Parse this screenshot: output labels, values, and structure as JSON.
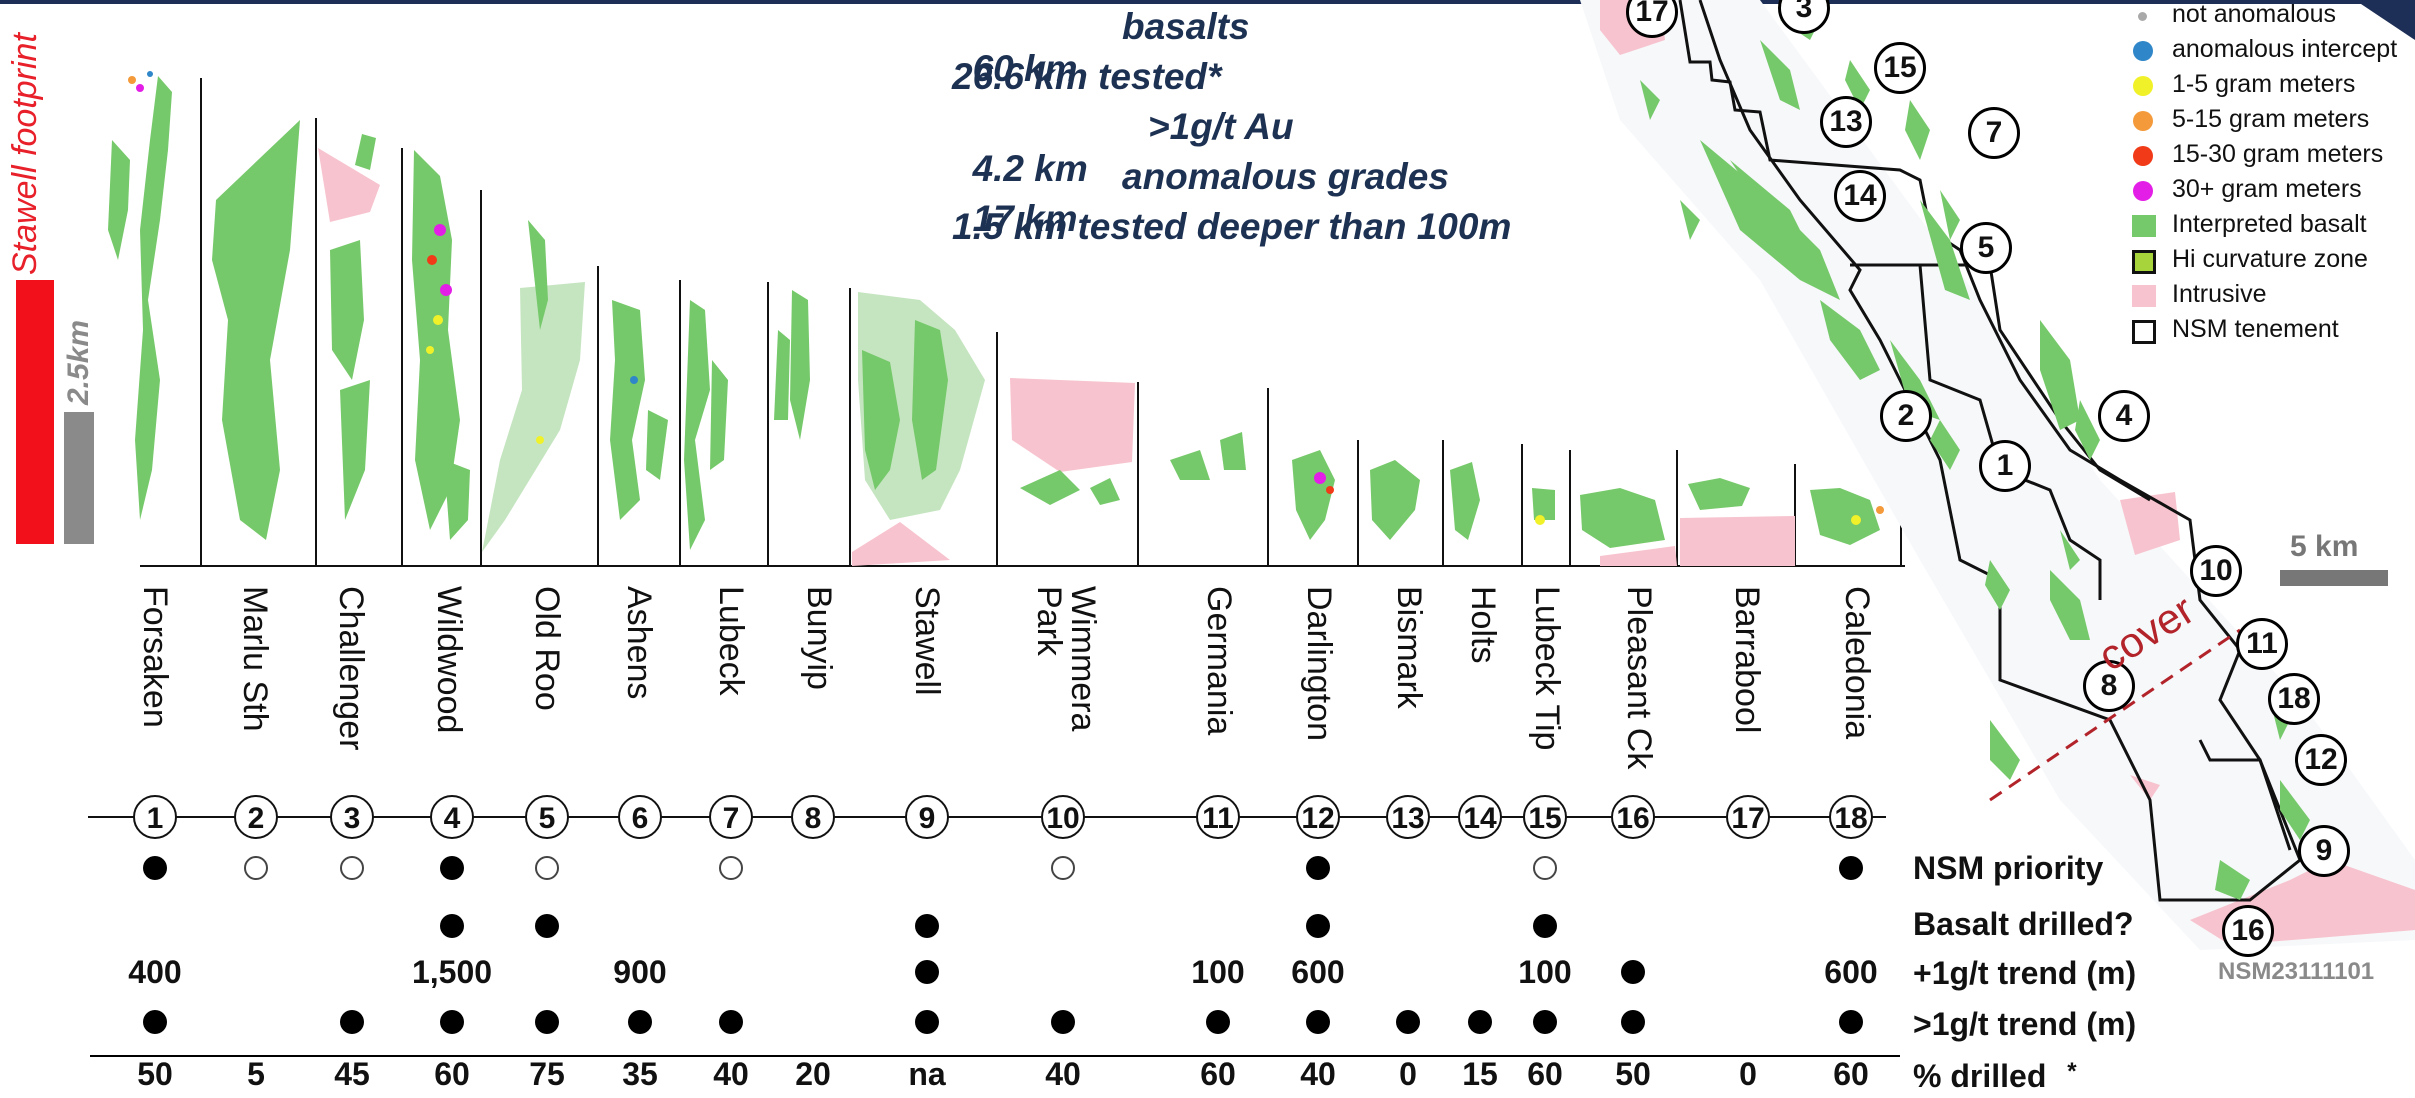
{
  "summary": {
    "line1_a": "60 km",
    "line1_b": "basalts",
    "line2": "26.6 km tested*",
    "line3_a": "4.2 km",
    "line3_b": ">1g/t Au",
    "line4_a": "17 km",
    "line4_b": "anomalous grades",
    "line5": "1.5 km tested deeper than 100m"
  },
  "left_scale": {
    "footprint_label": "Stawell footprint",
    "scale_label": "2.5km"
  },
  "prospects": [
    {
      "num": "1",
      "name": "Forsaken",
      "priority": "filled",
      "basalt_drilled": false,
      "trend_plus": "400",
      "trend_gt": true,
      "pct": "50"
    },
    {
      "num": "2",
      "name": "Marlu Sth",
      "priority": "hollow",
      "basalt_drilled": false,
      "trend_plus": "",
      "trend_gt": false,
      "pct": "5"
    },
    {
      "num": "3",
      "name": "Challenger",
      "priority": "hollow",
      "basalt_drilled": false,
      "trend_plus": "",
      "trend_gt": true,
      "pct": "45"
    },
    {
      "num": "4",
      "name": "Wildwood",
      "priority": "filled",
      "basalt_drilled": true,
      "trend_plus": "1,500",
      "trend_gt": true,
      "pct": "60"
    },
    {
      "num": "5",
      "name": "Old Roo",
      "priority": "hollow",
      "basalt_drilled": true,
      "trend_plus": "",
      "trend_gt": true,
      "pct": "75"
    },
    {
      "num": "6",
      "name": "Ashens",
      "priority": "none",
      "basalt_drilled": false,
      "trend_plus": "900",
      "trend_gt": true,
      "pct": "35"
    },
    {
      "num": "7",
      "name": "Lubeck",
      "priority": "hollow",
      "basalt_drilled": false,
      "trend_plus": "",
      "trend_gt": true,
      "pct": "40"
    },
    {
      "num": "8",
      "name": "Bunyip",
      "priority": "none",
      "basalt_drilled": false,
      "trend_plus": "",
      "trend_gt": false,
      "pct": "20"
    },
    {
      "num": "9",
      "name": "Stawell",
      "priority": "none",
      "basalt_drilled": true,
      "trend_plus": "dot",
      "trend_gt": true,
      "pct": "na"
    },
    {
      "num": "10",
      "name": "Wimmera",
      "name2": "Park",
      "priority": "hollow",
      "basalt_drilled": false,
      "trend_plus": "",
      "trend_gt": true,
      "pct": "40"
    },
    {
      "num": "11",
      "name": "Germania",
      "priority": "none",
      "basalt_drilled": false,
      "trend_plus": "100",
      "trend_gt": true,
      "pct": "60"
    },
    {
      "num": "12",
      "name": "Darlington",
      "priority": "filled",
      "basalt_drilled": true,
      "trend_plus": "600",
      "trend_gt": true,
      "pct": "40"
    },
    {
      "num": "13",
      "name": "Bismark",
      "priority": "none",
      "basalt_drilled": false,
      "trend_plus": "",
      "trend_gt": true,
      "pct": "0"
    },
    {
      "num": "14",
      "name": "Holts",
      "priority": "none",
      "basalt_drilled": false,
      "trend_plus": "",
      "trend_gt": true,
      "pct": "15"
    },
    {
      "num": "15",
      "name": "Lubeck Tip",
      "priority": "hollow",
      "basalt_drilled": true,
      "trend_plus": "100",
      "trend_gt": true,
      "pct": "60"
    },
    {
      "num": "16",
      "name": "Pleasant Ck",
      "priority": "none",
      "basalt_drilled": false,
      "trend_plus": "dot",
      "trend_gt": true,
      "pct": "50"
    },
    {
      "num": "17",
      "name": "Barrabool",
      "priority": "none",
      "basalt_drilled": false,
      "trend_plus": "",
      "trend_gt": false,
      "pct": "0"
    },
    {
      "num": "18",
      "name": "Caledonia",
      "priority": "filled",
      "basalt_drilled": false,
      "trend_plus": "600",
      "trend_gt": true,
      "pct": "60"
    }
  ],
  "row_labels": {
    "priority": "NSM priority",
    "basalt": "Basalt drilled?",
    "trend_plus": "+1g/t trend (m)",
    "trend_gt": ">1g/t trend (m)",
    "pct": "% drilled",
    "asterisk": "*"
  },
  "legend": [
    {
      "label": "not anomalous",
      "symbol": "small-dot",
      "color": "#a9a9a9"
    },
    {
      "label": "anomalous intercept",
      "symbol": "dot",
      "color": "#2f86c8"
    },
    {
      "label": "1-5 gram meters",
      "symbol": "dot",
      "color": "#f1f12a"
    },
    {
      "label": "5-15 gram meters",
      "symbol": "dot",
      "color": "#f49a3a"
    },
    {
      "label": "15-30 gram meters",
      "symbol": "dot",
      "color": "#f13a17"
    },
    {
      "label": "30+ gram meters",
      "symbol": "dot",
      "color": "#e31ee6"
    },
    {
      "label": "Interpreted basalt",
      "symbol": "square",
      "color": "#76c96a"
    },
    {
      "label": "Hi curvature zone",
      "symbol": "square-outline",
      "color": "#a6d43a"
    },
    {
      "label": "Intrusive",
      "symbol": "square",
      "color": "#f7c3ce"
    },
    {
      "label": "NSM tenement",
      "symbol": "square-outline",
      "color": "#ffffff"
    }
  ],
  "map": {
    "scale_label": "5 km",
    "cover_label": "cover",
    "reference": "NSM23111101",
    "numbers": [
      "17",
      "3",
      "15",
      "13",
      "7",
      "14",
      "5",
      "2",
      "4",
      "1",
      "10",
      "11",
      "18",
      "8",
      "12",
      "9",
      "16"
    ]
  }
}
